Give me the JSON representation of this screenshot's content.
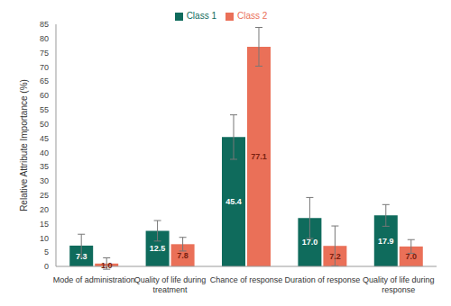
{
  "chart_data": {
    "type": "bar",
    "y_label": "Relative Attribute Importance (%)",
    "categories": [
      "Mode of administration",
      "Quality of life during treatment",
      "Chance of response",
      "Duration of response",
      "Quality of life during response"
    ],
    "series": [
      {
        "name": "Class 1",
        "color": "#0f6b5c",
        "values": [
          7.3,
          12.5,
          45.4,
          17.0,
          17.9
        ],
        "value_labels": [
          "7.3",
          "12.5",
          "45.4",
          "17.0",
          "17.9"
        ],
        "errors": [
          4.0,
          3.6,
          7.8,
          7.2,
          3.8
        ]
      },
      {
        "name": "Class 2",
        "color": "#ea7058",
        "values": [
          1.0,
          7.8,
          77.1,
          7.2,
          7.0
        ],
        "value_labels": [
          "1.0",
          "7.8",
          "77.1",
          "7.2",
          "7.0"
        ],
        "errors": [
          2.0,
          2.4,
          6.8,
          7.0,
          2.4
        ]
      }
    ],
    "ylim": [
      0,
      85
    ],
    "yticks": [
      0,
      5,
      10,
      15,
      20,
      25,
      30,
      35,
      40,
      45,
      50,
      55,
      60,
      65,
      70,
      75,
      80,
      85
    ],
    "grid": false,
    "legend": "top",
    "data_labels": true
  }
}
